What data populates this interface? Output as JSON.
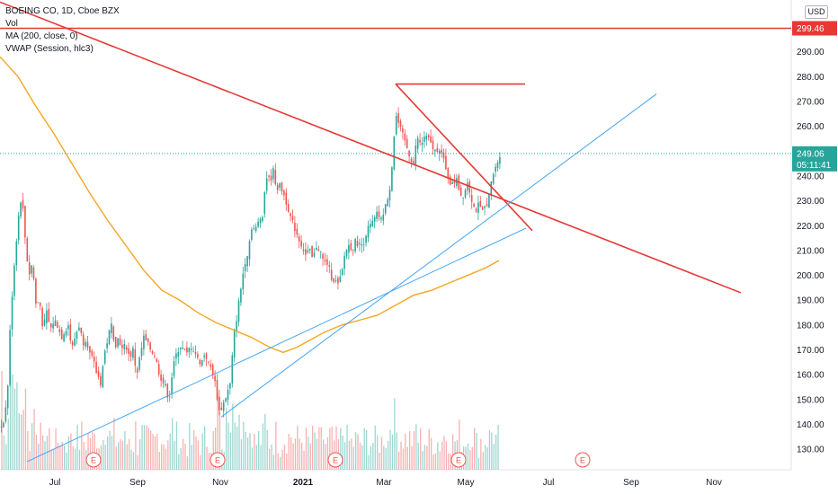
{
  "legend": {
    "title": "BOEING CO, 1D, Cboe BZX",
    "vol": "Vol",
    "ma": "MA (200, close, 0)",
    "vwap": "VWAP (Session, hlc3)"
  },
  "currency": "USD",
  "price_labels": {
    "resistance": "299.46",
    "last": "249.06",
    "countdown": "05:11:41"
  },
  "colors": {
    "up": "#26a69a",
    "down": "#ef5350",
    "trend_red": "#e53935",
    "trend_blue": "#42a5f5",
    "ma": "#f5a623",
    "last_badge": "#26a69a",
    "resistance_badge": "#e53935"
  },
  "chart_data": {
    "type": "candlestick",
    "symbol": "BOEING CO",
    "interval": "1D",
    "exchange": "Cboe BZX",
    "y_axis": {
      "ticks": [
        130,
        140,
        150,
        160,
        170,
        180,
        190,
        200,
        210,
        220,
        230,
        240,
        250,
        260,
        270,
        280,
        290
      ],
      "tick_labels": [
        "130.00",
        "140.00",
        "150.00",
        "160.00",
        "170.00",
        "180.00",
        "190.00",
        "200.00",
        "210.00",
        "220.00",
        "230.00",
        "240.00",
        "250.00",
        "260.00",
        "270.00",
        "280.00",
        "290.00"
      ]
    },
    "x_axis": {
      "labels": [
        {
          "text": "Jul",
          "t": 61,
          "bold": false
        },
        {
          "text": "Sep",
          "t": 153,
          "bold": false
        },
        {
          "text": "Nov",
          "t": 245,
          "bold": false
        },
        {
          "text": "2021",
          "t": 337,
          "bold": true
        },
        {
          "text": "Mar",
          "t": 427,
          "bold": false
        },
        {
          "text": "May",
          "t": 518,
          "bold": false
        },
        {
          "text": "Jul",
          "t": 610,
          "bold": false
        },
        {
          "text": "Sep",
          "t": 702,
          "bold": false
        },
        {
          "text": "Nov",
          "t": 794,
          "bold": false
        }
      ]
    },
    "price_path": [
      [
        0,
        138
      ],
      [
        4,
        142
      ],
      [
        8,
        150
      ],
      [
        12,
        185
      ],
      [
        16,
        205
      ],
      [
        20,
        222
      ],
      [
        24,
        233
      ],
      [
        28,
        215
      ],
      [
        32,
        200
      ],
      [
        36,
        205
      ],
      [
        40,
        188
      ],
      [
        44,
        190
      ],
      [
        48,
        178
      ],
      [
        52,
        185
      ],
      [
        56,
        178
      ],
      [
        60,
        182
      ],
      [
        64,
        180
      ],
      [
        68,
        175
      ],
      [
        72,
        178
      ],
      [
        76,
        180
      ],
      [
        80,
        170
      ],
      [
        84,
        176
      ],
      [
        88,
        180
      ],
      [
        92,
        173
      ],
      [
        96,
        175
      ],
      [
        100,
        168
      ],
      [
        104,
        165
      ],
      [
        108,
        160
      ],
      [
        112,
        157
      ],
      [
        116,
        168
      ],
      [
        120,
        175
      ],
      [
        124,
        180
      ],
      [
        128,
        172
      ],
      [
        132,
        175
      ],
      [
        136,
        170
      ],
      [
        140,
        172
      ],
      [
        144,
        167
      ],
      [
        148,
        170
      ],
      [
        152,
        160
      ],
      [
        156,
        168
      ],
      [
        160,
        175
      ],
      [
        164,
        172
      ],
      [
        168,
        170
      ],
      [
        172,
        168
      ],
      [
        176,
        162
      ],
      [
        180,
        158
      ],
      [
        184,
        155
      ],
      [
        188,
        150
      ],
      [
        192,
        162
      ],
      [
        196,
        168
      ],
      [
        200,
        172
      ],
      [
        204,
        170
      ],
      [
        208,
        168
      ],
      [
        212,
        172
      ],
      [
        216,
        170
      ],
      [
        220,
        166
      ],
      [
        224,
        165
      ],
      [
        228,
        169
      ],
      [
        232,
        164
      ],
      [
        236,
        162
      ],
      [
        240,
        155
      ],
      [
        244,
        145
      ],
      [
        248,
        148
      ],
      [
        252,
        152
      ],
      [
        256,
        156
      ],
      [
        260,
        175
      ],
      [
        264,
        185
      ],
      [
        268,
        195
      ],
      [
        272,
        205
      ],
      [
        276,
        210
      ],
      [
        280,
        220
      ],
      [
        284,
        218
      ],
      [
        288,
        222
      ],
      [
        292,
        225
      ],
      [
        296,
        240
      ],
      [
        300,
        238
      ],
      [
        304,
        242
      ],
      [
        308,
        235
      ],
      [
        312,
        236
      ],
      [
        316,
        232
      ],
      [
        320,
        228
      ],
      [
        324,
        222
      ],
      [
        328,
        219
      ],
      [
        332,
        215
      ],
      [
        336,
        212
      ],
      [
        340,
        208
      ],
      [
        344,
        210
      ],
      [
        348,
        206
      ],
      [
        352,
        212
      ],
      [
        356,
        210
      ],
      [
        360,
        205
      ],
      [
        364,
        205
      ],
      [
        368,
        200
      ],
      [
        372,
        198
      ],
      [
        376,
        196
      ],
      [
        380,
        200
      ],
      [
        384,
        210
      ],
      [
        388,
        212
      ],
      [
        392,
        211
      ],
      [
        396,
        214
      ],
      [
        400,
        212
      ],
      [
        404,
        213
      ],
      [
        408,
        218
      ],
      [
        412,
        220
      ],
      [
        416,
        222
      ],
      [
        420,
        225
      ],
      [
        424,
        222
      ],
      [
        428,
        228
      ],
      [
        432,
        230
      ],
      [
        436,
        245
      ],
      [
        440,
        265
      ],
      [
        444,
        260
      ],
      [
        448,
        256
      ],
      [
        452,
        252
      ],
      [
        456,
        248
      ],
      [
        460,
        245
      ],
      [
        464,
        256
      ],
      [
        468,
        252
      ],
      [
        472,
        256
      ],
      [
        476,
        255
      ],
      [
        480,
        252
      ],
      [
        484,
        250
      ],
      [
        488,
        252
      ],
      [
        492,
        248
      ],
      [
        496,
        242
      ],
      [
        500,
        238
      ],
      [
        504,
        236
      ],
      [
        508,
        240
      ],
      [
        512,
        232
      ],
      [
        516,
        233
      ],
      [
        520,
        238
      ],
      [
        524,
        232
      ],
      [
        528,
        226
      ],
      [
        532,
        228
      ],
      [
        536,
        225
      ],
      [
        540,
        228
      ],
      [
        544,
        232
      ],
      [
        548,
        240
      ],
      [
        552,
        244
      ],
      [
        556,
        249.06
      ]
    ],
    "ma_200": [
      [
        0,
        288
      ],
      [
        20,
        280
      ],
      [
        40,
        268
      ],
      [
        60,
        257
      ],
      [
        80,
        245
      ],
      [
        100,
        233
      ],
      [
        120,
        222
      ],
      [
        140,
        212
      ],
      [
        160,
        202
      ],
      [
        180,
        194
      ],
      [
        200,
        190
      ],
      [
        220,
        185
      ],
      [
        240,
        181
      ],
      [
        260,
        178
      ],
      [
        280,
        175
      ],
      [
        300,
        171
      ],
      [
        315,
        169
      ],
      [
        330,
        171
      ],
      [
        345,
        174
      ],
      [
        360,
        177
      ],
      [
        380,
        180
      ],
      [
        400,
        182
      ],
      [
        420,
        184
      ],
      [
        440,
        188
      ],
      [
        460,
        192
      ],
      [
        480,
        194
      ],
      [
        500,
        197
      ],
      [
        520,
        200
      ],
      [
        540,
        203
      ],
      [
        555,
        206
      ]
    ],
    "volume": {
      "note": "relative daily volume bars, 0-1",
      "values_by_t": "generated per day from price_path volatility"
    },
    "trendlines": [
      {
        "name": "descending resistance",
        "color": "red",
        "from": [
          0,
          310
        ],
        "to": [
          824,
          193
        ]
      },
      {
        "name": "upper horizontal",
        "color": "red",
        "from": [
          440,
          277
        ],
        "to": [
          584,
          277
        ]
      },
      {
        "name": "wedge upper",
        "color": "red",
        "from": [
          440,
          277
        ],
        "to": [
          592,
          218
        ]
      },
      {
        "name": "rising support (steep)",
        "color": "blue",
        "from": [
          246,
          143
        ],
        "to": [
          730,
          273
        ]
      },
      {
        "name": "rising support (shallow)",
        "color": "blue",
        "from": [
          30,
          125
        ],
        "to": [
          585,
          219
        ]
      },
      {
        "name": "resistance level",
        "color": "red",
        "price": 299.46
      }
    ],
    "earnings_markers": [
      104,
      242,
      373,
      510,
      648
    ],
    "last_price": 249.06,
    "resistance_price": 299.46
  }
}
